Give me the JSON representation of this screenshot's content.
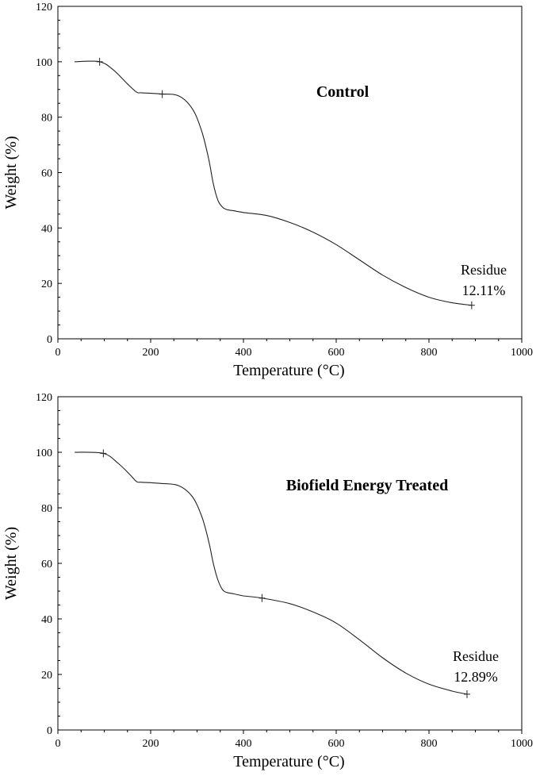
{
  "chart_data": [
    {
      "type": "line",
      "title": "Control",
      "xlabel": "Temperature (°C)",
      "ylabel": "Weight (%)",
      "xlim": [
        0,
        1000
      ],
      "ylim": [
        0,
        120
      ],
      "x_ticks": [
        "0",
        "200",
        "400",
        "600",
        "800",
        "1000"
      ],
      "y_ticks": [
        "0",
        "20",
        "40",
        "60",
        "80",
        "100",
        "120"
      ],
      "grid": false,
      "annotation": {
        "line1": "Residue",
        "line2": "12.11%"
      },
      "series": [
        {
          "x": [
            36,
            90,
            120,
            150,
            170,
            180,
            220,
            260,
            290,
            310,
            325,
            335,
            345,
            355,
            365,
            380,
            400,
            450,
            500,
            550,
            600,
            650,
            700,
            750,
            800,
            850,
            892
          ],
          "values": [
            100,
            100,
            97,
            92,
            89,
            88.8,
            88.4,
            87.7,
            83,
            75,
            65,
            56,
            50,
            47.5,
            46.6,
            46.2,
            45.6,
            44.5,
            42,
            38.5,
            34,
            28.5,
            23,
            18.5,
            15,
            13,
            12.11
          ]
        }
      ],
      "markers_x": [
        90,
        225,
        892
      ]
    },
    {
      "type": "line",
      "title": "Biofield Energy Treated",
      "xlabel": "Temperature (°C)",
      "ylabel": "Weight (%)",
      "xlim": [
        0,
        1000
      ],
      "ylim": [
        0,
        120
      ],
      "x_ticks": [
        "0",
        "200",
        "400",
        "600",
        "800",
        "1000"
      ],
      "y_ticks": [
        "0",
        "20",
        "40",
        "60",
        "80",
        "100",
        "120"
      ],
      "grid": false,
      "annotation": {
        "line1": "Residue",
        "line2": "12.89%"
      },
      "series": [
        {
          "x": [
            36,
            98,
            130,
            155,
            170,
            180,
            220,
            260,
            290,
            310,
            325,
            335,
            345,
            355,
            365,
            380,
            400,
            440,
            500,
            550,
            600,
            650,
            700,
            750,
            800,
            850,
            882
          ],
          "values": [
            100,
            99.6,
            96,
            92,
            89.4,
            89.2,
            88.8,
            88,
            84,
            77,
            68,
            60,
            54,
            50.5,
            49.5,
            49,
            48.3,
            47.5,
            45.5,
            42.5,
            38.5,
            32.5,
            26,
            20.5,
            16.5,
            14,
            12.89
          ]
        }
      ],
      "markers_x": [
        98,
        440,
        882
      ]
    }
  ]
}
